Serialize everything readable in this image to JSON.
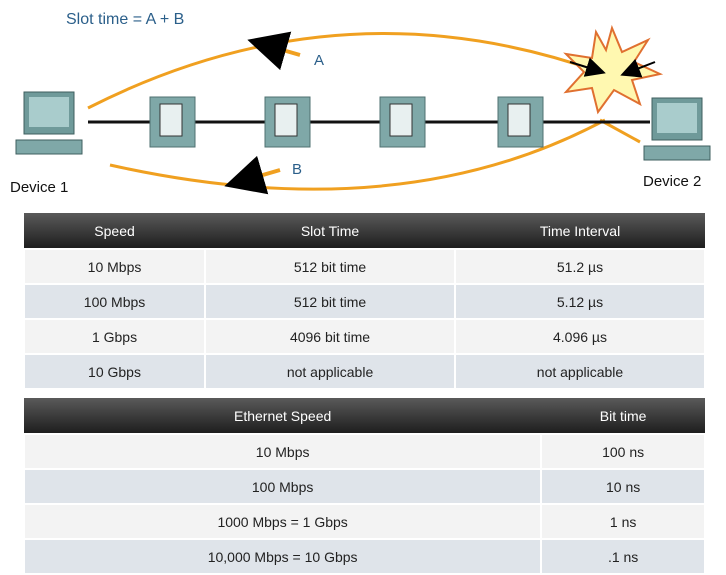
{
  "diagram": {
    "formula": "Slot time = A + B",
    "arrow_a": "A",
    "arrow_b": "B",
    "device_1": "Device 1",
    "device_2": "Device 2"
  },
  "slot_table": {
    "header": [
      "Speed",
      "Slot Time",
      "Time Interval"
    ],
    "rows": [
      [
        "10 Mbps",
        "512 bit time",
        "51.2 µs"
      ],
      [
        "100 Mbps",
        "512 bit time",
        "5.12 µs"
      ],
      [
        "1 Gbps",
        "4096 bit time",
        "4.096 µs"
      ],
      [
        "10 Gbps",
        "not applicable",
        "not applicable"
      ]
    ]
  },
  "bit_table": {
    "header": [
      "Ethernet Speed",
      "Bit time"
    ],
    "rows": [
      [
        "10 Mbps",
        "100 ns"
      ],
      [
        "100 Mbps",
        "10 ns"
      ],
      [
        "1000 Mbps = 1 Gbps",
        "1 ns"
      ],
      [
        "10,000 Mbps = 10 Gbps",
        ".1 ns"
      ]
    ]
  }
}
